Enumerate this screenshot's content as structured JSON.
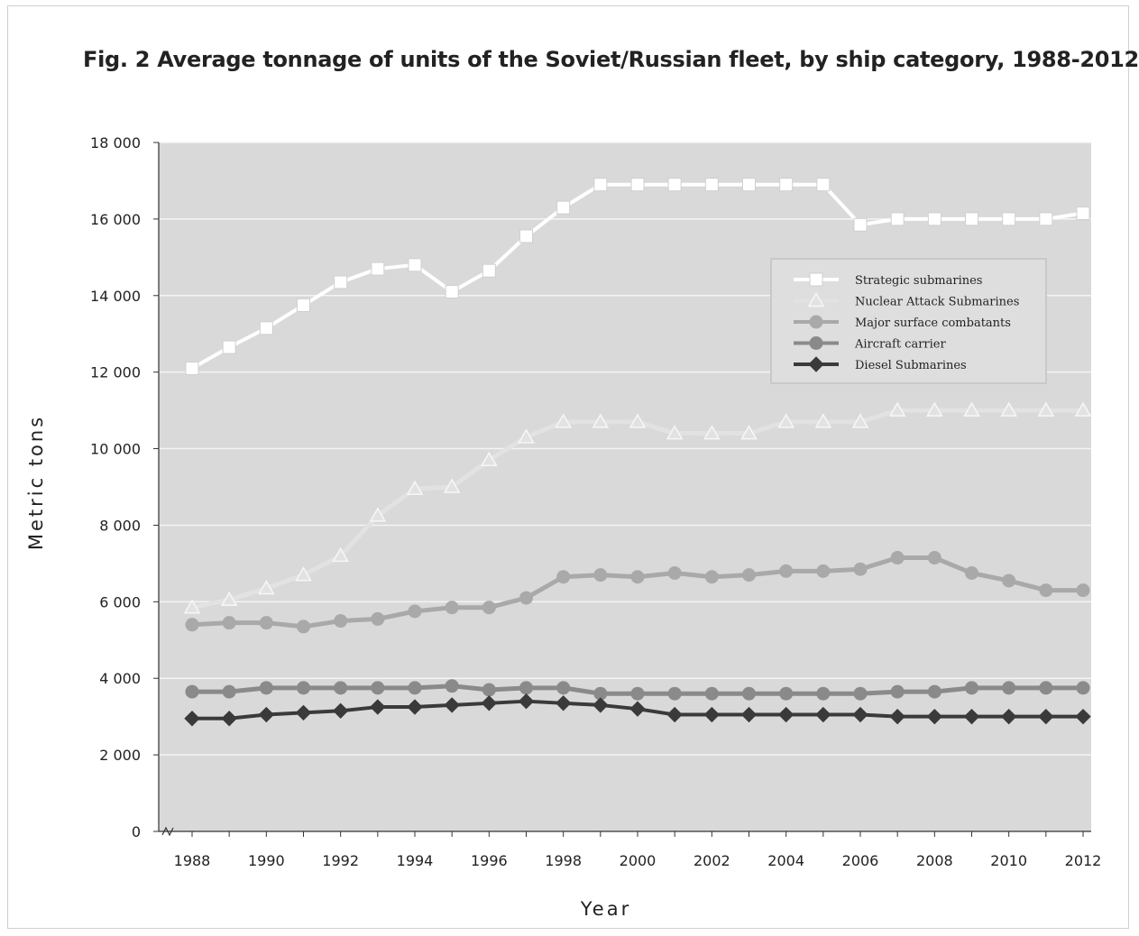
{
  "title": "Fig. 2   Average tonnage of units of the Soviet/Russian fleet, by ship category, 1988-2012",
  "chart_data": {
    "type": "line",
    "title": "Fig. 2   Average tonnage of units of the Soviet/Russian fleet, by ship category, 1988-2012",
    "xlabel": "Year",
    "ylabel": "Metric tons",
    "xlim": [
      1988,
      2012
    ],
    "ylim": [
      0,
      18000
    ],
    "x_ticks": [
      "1988",
      "1990",
      "1992",
      "1994",
      "1996",
      "1998",
      "2000",
      "2002",
      "2004",
      "2006",
      "2008",
      "2010",
      "2012"
    ],
    "y_ticks": [
      "0",
      "2 000",
      "4 000",
      "6 000",
      "8 000",
      "10 000",
      "12 000",
      "14 000",
      "16 000",
      "18 000"
    ],
    "grid": true,
    "legend_position": "right",
    "x": [
      1988,
      1989,
      1990,
      1991,
      1992,
      1993,
      1994,
      1995,
      1996,
      1997,
      1998,
      1999,
      2000,
      2001,
      2002,
      2003,
      2004,
      2005,
      2006,
      2007,
      2008,
      2009,
      2010,
      2011,
      2012
    ],
    "series": [
      {
        "name": "Strategic submarines",
        "color": "#ffffff",
        "marker": "square",
        "values": [
          12100,
          12650,
          13150,
          13750,
          14350,
          14700,
          14800,
          14100,
          14650,
          15550,
          16300,
          16900,
          16900,
          16900,
          16900,
          16900,
          16900,
          16900,
          15850,
          16000,
          16000,
          16000,
          16000,
          16000,
          16150
        ]
      },
      {
        "name": "Nuclear Attack Submarines",
        "color": "#e2e2e2",
        "marker": "triangle",
        "values": [
          5850,
          6050,
          6350,
          6700,
          7200,
          8250,
          8950,
          9000,
          9700,
          10300,
          10700,
          10700,
          10700,
          10400,
          10400,
          10400,
          10700,
          10700,
          10700,
          11000,
          11000,
          11000,
          11000,
          11000,
          11000
        ]
      },
      {
        "name": "Major surface combatants",
        "color": "#a9a9a9",
        "marker": "circle",
        "values": [
          5400,
          5450,
          5450,
          5350,
          5500,
          5550,
          5750,
          5850,
          5850,
          6100,
          6650,
          6700,
          6650,
          6750,
          6650,
          6700,
          6800,
          6800,
          6850,
          7150,
          7150,
          6750,
          6550,
          6300,
          6300
        ]
      },
      {
        "name": "Aircraft carrier",
        "color": "#8a8a8a",
        "marker": "circle",
        "values": [
          3650,
          3650,
          3750,
          3750,
          3750,
          3750,
          3750,
          3800,
          3700,
          3750,
          3750,
          3600,
          3600,
          3600,
          3600,
          3600,
          3600,
          3600,
          3600,
          3650,
          3650,
          3750,
          3750,
          3750,
          3750
        ]
      },
      {
        "name": "Diesel Submarines",
        "color": "#3a3a3a",
        "marker": "diamond",
        "values": [
          2950,
          2950,
          3050,
          3100,
          3150,
          3250,
          3250,
          3300,
          3350,
          3400,
          3350,
          3300,
          3200,
          3050,
          3050,
          3050,
          3050,
          3050,
          3050,
          3000,
          3000,
          3000,
          3000,
          3000,
          3000
        ]
      }
    ]
  }
}
